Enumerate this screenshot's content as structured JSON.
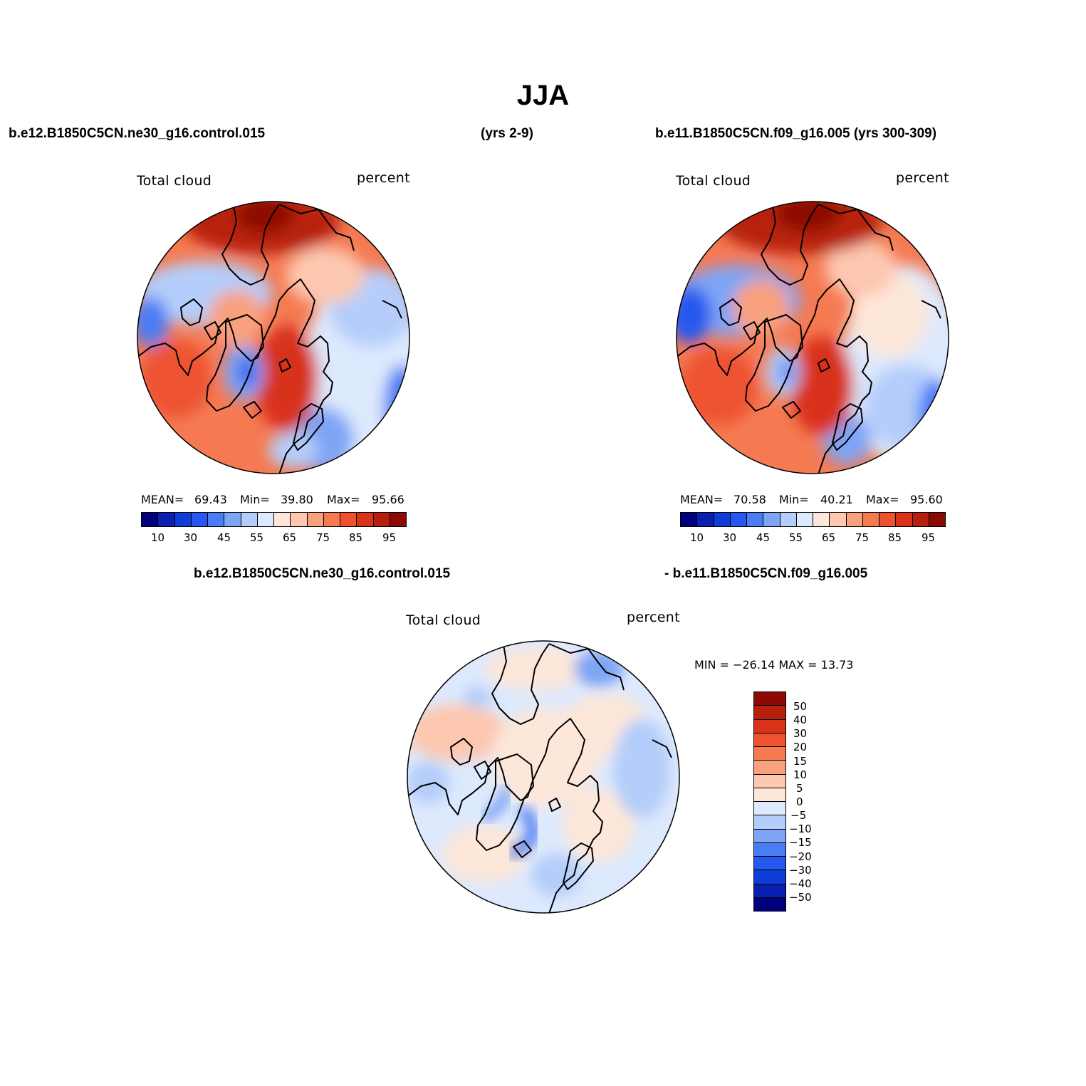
{
  "title": "JJA",
  "header": {
    "left_case": "b.e12.B1850C5CN.ne30_g16.control.015",
    "left_years": "(yrs 2-9)",
    "right_case": "b.e11.B1850C5CN.f09_g16.005 (yrs 300-309)",
    "diff_left": "b.e12.B1850C5CN.ne30_g16.control.015",
    "diff_right": "- b.e11.B1850C5CN.f09_g16.005"
  },
  "panels": [
    {
      "variable": "Total cloud",
      "units": "percent",
      "stats": {
        "mean_label": "MEAN=",
        "mean": "69.43",
        "min_label": "Min=",
        "min": "39.80",
        "max_label": "Max=",
        "max": "95.66"
      }
    },
    {
      "variable": "Total cloud",
      "units": "percent",
      "stats": {
        "mean_label": "MEAN=",
        "mean": "70.58",
        "min_label": "Min=",
        "min": "40.21",
        "max_label": "Max=",
        "max": "95.60"
      }
    },
    {
      "variable": "Total cloud",
      "units": "percent",
      "stats_text": "MIN = −26.14 MAX =  13.73"
    }
  ],
  "colorbar_abs": {
    "colors": [
      "#00007f",
      "#0a1eaf",
      "#0f3dd8",
      "#2558f0",
      "#4a7df5",
      "#7ea4f5",
      "#b4cdfa",
      "#dde9fd",
      "#fde7d9",
      "#fdc7b0",
      "#f9a07f",
      "#f57a52",
      "#ee5230",
      "#d9331a",
      "#b8200e",
      "#8c0a04"
    ],
    "labels": [
      "10",
      "30",
      "45",
      "55",
      "65",
      "75",
      "85",
      "95"
    ]
  },
  "colorbar_diff": {
    "colors": [
      "#8c0a04",
      "#b8200e",
      "#d9331a",
      "#ee5230",
      "#f57a52",
      "#f9a07f",
      "#fdc7b0",
      "#fde7d9",
      "#dde9fd",
      "#b4cdfa",
      "#7ea4f5",
      "#4a7df5",
      "#2558f0",
      "#0f3dd8",
      "#0a1eaf",
      "#00007f"
    ],
    "labels": [
      "50",
      "40",
      "30",
      "20",
      "15",
      "10",
      "5",
      "0",
      "−5",
      "−10",
      "−15",
      "−20",
      "−30",
      "−40",
      "−50"
    ]
  }
}
